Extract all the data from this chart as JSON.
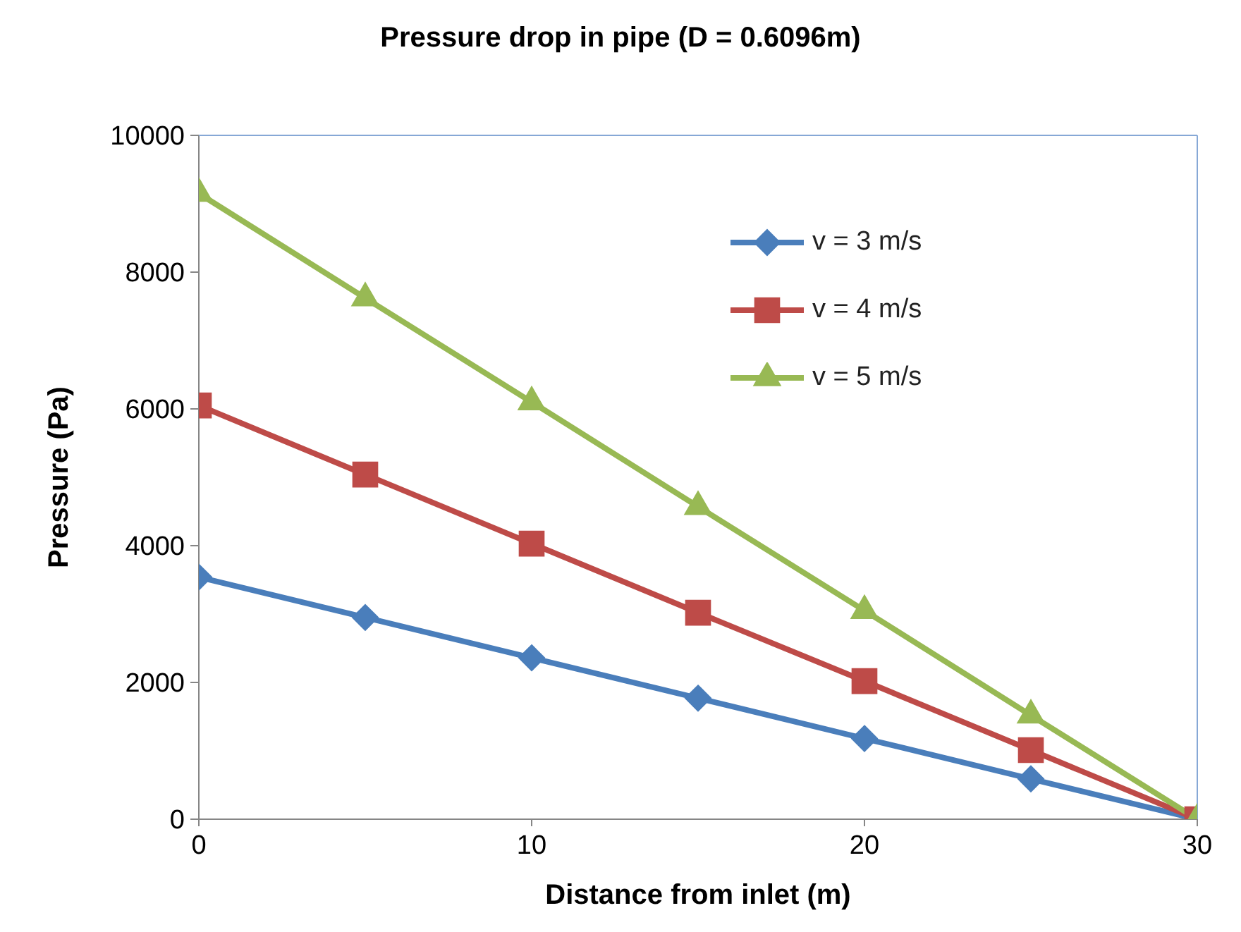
{
  "chart_data": {
    "type": "line",
    "title": "Pressure drop in pipe (D = 0.6096m)",
    "xlabel": "Distance from inlet (m)",
    "ylabel": "Pressure  (Pa)",
    "x": [
      0,
      5,
      10,
      15,
      20,
      25,
      30
    ],
    "series": [
      {
        "name": "v = 3 m/s",
        "color": "#4a7ebb",
        "marker": "diamond",
        "values": [
          3540,
          2950,
          2360,
          1770,
          1180,
          590,
          0
        ]
      },
      {
        "name": "v = 4 m/s",
        "color": "#be4b48",
        "marker": "square",
        "values": [
          6050,
          5040,
          4030,
          3020,
          2020,
          1010,
          0
        ]
      },
      {
        "name": "v = 5 m/s",
        "color": "#98b954",
        "marker": "triangle",
        "values": [
          9150,
          7620,
          6100,
          4570,
          3050,
          1520,
          0
        ]
      }
    ],
    "xlim": [
      0,
      30
    ],
    "xticks": [
      0,
      10,
      20,
      30
    ],
    "ylim": [
      0,
      10000
    ],
    "yticks": [
      0,
      2000,
      4000,
      6000,
      8000,
      10000
    ],
    "legend": "top right"
  }
}
